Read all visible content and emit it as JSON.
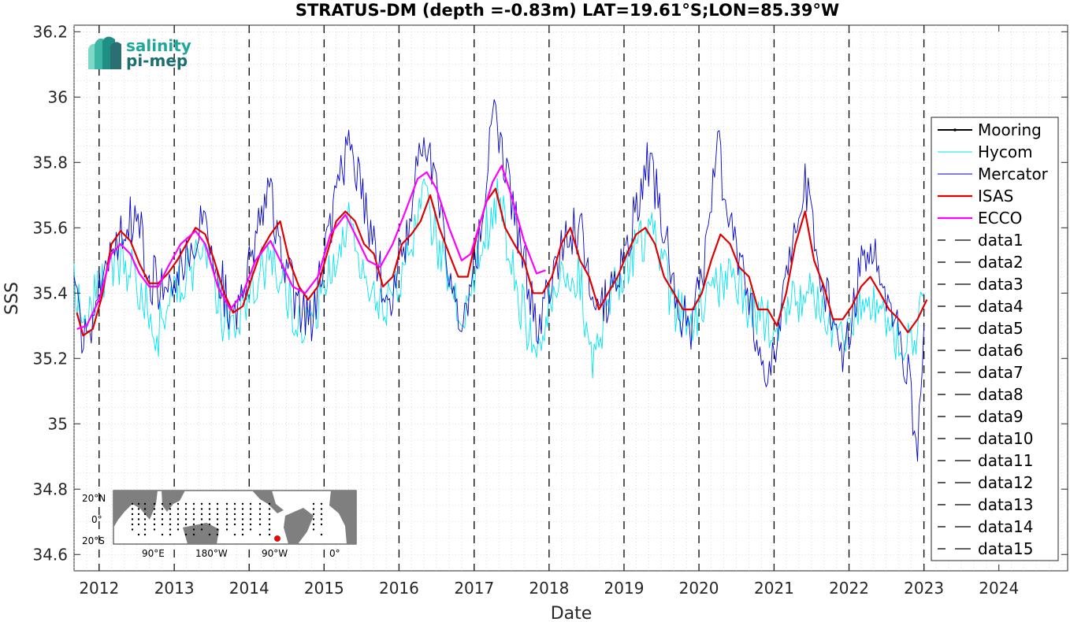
{
  "title": "STRATUS-DM (depth =-0.83m) LAT=19.61°S;LON=85.39°W",
  "logo": {
    "line1": "salinity",
    "line2": "pi-mep"
  },
  "inset_map": {
    "ylabels": [
      "20°N",
      "0°",
      "20°S"
    ],
    "xlabels": [
      "90°E",
      "180°W",
      "90°W",
      "0°"
    ],
    "marker_color": "#ff0000"
  },
  "chart_data": {
    "type": "line",
    "xlabel": "Date",
    "ylabel": "SSS",
    "xlim": [
      "2011-09-01",
      "2024-12-01"
    ],
    "ylim": [
      34.55,
      36.22
    ],
    "yticks": [
      34.6,
      34.8,
      35,
      35.2,
      35.4,
      35.6,
      35.8,
      36,
      36.2
    ],
    "ytick_labels": [
      "34.6",
      "34.8",
      "35",
      "35.2",
      "35.4",
      "35.6",
      "35.8",
      "36",
      "36.2"
    ],
    "xticks": [
      "2012-01-01",
      "2013-01-01",
      "2014-01-01",
      "2015-01-01",
      "2016-01-01",
      "2017-01-01",
      "2018-01-01",
      "2019-01-01",
      "2020-01-01",
      "2021-01-01",
      "2022-01-01",
      "2023-01-01",
      "2024-01-01"
    ],
    "xtick_labels": [
      "2012",
      "2013",
      "2014",
      "2015",
      "2016",
      "2017",
      "2018",
      "2019",
      "2020",
      "2021",
      "2022",
      "2023",
      "2024"
    ],
    "grid": true,
    "legend_position": "right",
    "vlines": [
      "2012-01-01",
      "2013-01-01",
      "2014-01-01",
      "2015-01-01",
      "2016-01-01",
      "2017-01-01",
      "2018-01-01",
      "2019-01-01",
      "2020-01-01",
      "2021-01-01",
      "2022-01-01",
      "2023-01-01"
    ],
    "series": [
      {
        "name": "Mooring",
        "color": "#000000",
        "style": "solid-dot",
        "points": []
      },
      {
        "name": "Hycom",
        "color": "#00e5ee",
        "style": "thin",
        "points": [
          [
            "2011-09-01",
            35.42
          ],
          [
            "2011-11-01",
            35.33
          ],
          [
            "2012-02-01",
            35.45
          ],
          [
            "2012-05-01",
            35.5
          ],
          [
            "2012-08-01",
            35.4
          ],
          [
            "2012-10-01",
            35.25
          ],
          [
            "2012-12-01",
            35.38
          ],
          [
            "2013-03-01",
            35.45
          ],
          [
            "2013-06-01",
            35.55
          ],
          [
            "2013-09-01",
            35.3
          ],
          [
            "2013-11-01",
            35.3
          ],
          [
            "2014-02-01",
            35.45
          ],
          [
            "2014-05-01",
            35.5
          ],
          [
            "2014-08-01",
            35.35
          ],
          [
            "2014-11-01",
            35.3
          ],
          [
            "2015-02-01",
            35.45
          ],
          [
            "2015-05-01",
            35.62
          ],
          [
            "2015-08-01",
            35.45
          ],
          [
            "2015-11-01",
            35.35
          ],
          [
            "2016-02-01",
            35.5
          ],
          [
            "2016-05-01",
            35.7
          ],
          [
            "2016-08-01",
            35.5
          ],
          [
            "2016-11-01",
            35.3
          ],
          [
            "2017-02-01",
            35.55
          ],
          [
            "2017-05-01",
            35.7
          ],
          [
            "2017-08-01",
            35.4
          ],
          [
            "2017-11-01",
            35.2
          ],
          [
            "2018-01-01",
            35.35
          ],
          [
            "2018-03-01",
            35.5
          ],
          [
            "2018-06-01",
            35.45
          ],
          [
            "2018-08-01",
            35.15
          ],
          [
            "2018-11-01",
            35.4
          ],
          [
            "2019-03-01",
            35.55
          ],
          [
            "2019-06-01",
            35.6
          ],
          [
            "2019-09-01",
            35.35
          ],
          [
            "2019-12-01",
            35.3
          ],
          [
            "2020-03-01",
            35.4
          ],
          [
            "2020-06-01",
            35.45
          ],
          [
            "2020-09-01",
            35.35
          ],
          [
            "2020-12-01",
            35.3
          ],
          [
            "2021-03-01",
            35.35
          ],
          [
            "2021-06-01",
            35.4
          ],
          [
            "2021-09-01",
            35.35
          ],
          [
            "2021-12-01",
            35.25
          ],
          [
            "2022-03-01",
            35.35
          ],
          [
            "2022-06-01",
            35.38
          ],
          [
            "2022-09-01",
            35.25
          ],
          [
            "2022-12-01",
            35.28
          ],
          [
            "2023-01-01",
            35.4
          ]
        ]
      },
      {
        "name": "Mercator",
        "color": "#0000c8",
        "style": "thin",
        "points": [
          [
            "2011-09-01",
            35.4
          ],
          [
            "2011-11-01",
            35.22
          ],
          [
            "2012-02-01",
            35.5
          ],
          [
            "2012-05-01",
            35.6
          ],
          [
            "2012-07-01",
            35.65
          ],
          [
            "2012-09-01",
            35.45
          ],
          [
            "2012-12-01",
            35.4
          ],
          [
            "2013-03-01",
            35.5
          ],
          [
            "2013-06-01",
            35.65
          ],
          [
            "2013-09-01",
            35.4
          ],
          [
            "2013-11-01",
            35.3
          ],
          [
            "2014-02-01",
            35.55
          ],
          [
            "2014-04-01",
            35.75
          ],
          [
            "2014-06-01",
            35.55
          ],
          [
            "2014-09-01",
            35.35
          ],
          [
            "2014-11-01",
            35.3
          ],
          [
            "2015-03-01",
            35.7
          ],
          [
            "2015-05-01",
            35.85
          ],
          [
            "2015-07-01",
            35.7
          ],
          [
            "2015-10-01",
            35.45
          ],
          [
            "2015-12-01",
            35.4
          ],
          [
            "2016-03-01",
            35.65
          ],
          [
            "2016-05-01",
            35.9
          ],
          [
            "2016-07-01",
            35.75
          ],
          [
            "2016-09-01",
            35.45
          ],
          [
            "2016-11-01",
            35.3
          ],
          [
            "2017-02-01",
            35.6
          ],
          [
            "2017-04-01",
            35.95
          ],
          [
            "2017-06-01",
            35.8
          ],
          [
            "2017-09-01",
            35.5
          ],
          [
            "2017-11-01",
            35.3
          ],
          [
            "2018-01-01",
            35.4
          ],
          [
            "2018-03-01",
            35.55
          ],
          [
            "2018-06-01",
            35.6
          ],
          [
            "2018-08-01",
            35.35
          ],
          [
            "2018-11-01",
            35.4
          ],
          [
            "2019-02-01",
            35.6
          ],
          [
            "2019-05-01",
            35.8
          ],
          [
            "2019-07-01",
            35.65
          ],
          [
            "2019-10-01",
            35.35
          ],
          [
            "2019-12-01",
            35.3
          ],
          [
            "2020-02-01",
            35.5
          ],
          [
            "2020-04-01",
            35.85
          ],
          [
            "2020-06-01",
            35.6
          ],
          [
            "2020-09-01",
            35.4
          ],
          [
            "2020-12-01",
            35.1
          ],
          [
            "2021-02-01",
            35.3
          ],
          [
            "2021-04-01",
            35.6
          ],
          [
            "2021-06-01",
            35.75
          ],
          [
            "2021-08-01",
            35.5
          ],
          [
            "2021-10-01",
            35.35
          ],
          [
            "2021-12-01",
            35.15
          ],
          [
            "2022-02-01",
            35.4
          ],
          [
            "2022-04-01",
            35.55
          ],
          [
            "2022-06-01",
            35.45
          ],
          [
            "2022-08-01",
            35.35
          ],
          [
            "2022-10-01",
            35.2
          ],
          [
            "2022-12-01",
            34.95
          ],
          [
            "2023-01-01",
            35.3
          ]
        ]
      },
      {
        "name": "ISAS",
        "color": "#e00000",
        "style": "thick",
        "points": [
          [
            "2011-09-15",
            35.34
          ],
          [
            "2011-10-15",
            35.27
          ],
          [
            "2011-12-01",
            35.29
          ],
          [
            "2012-01-15",
            35.39
          ],
          [
            "2012-03-01",
            35.55
          ],
          [
            "2012-04-15",
            35.59
          ],
          [
            "2012-06-01",
            35.56
          ],
          [
            "2012-07-15",
            35.49
          ],
          [
            "2012-09-01",
            35.43
          ],
          [
            "2012-10-15",
            35.43
          ],
          [
            "2012-12-01",
            35.46
          ],
          [
            "2013-01-15",
            35.5
          ],
          [
            "2013-03-01",
            35.55
          ],
          [
            "2013-04-15",
            35.6
          ],
          [
            "2013-06-01",
            35.58
          ],
          [
            "2013-07-15",
            35.5
          ],
          [
            "2013-09-01",
            35.4
          ],
          [
            "2013-10-15",
            35.34
          ],
          [
            "2013-12-01",
            35.36
          ],
          [
            "2014-01-15",
            35.45
          ],
          [
            "2014-03-01",
            35.53
          ],
          [
            "2014-04-15",
            35.58
          ],
          [
            "2014-06-01",
            35.62
          ],
          [
            "2014-07-15",
            35.5
          ],
          [
            "2014-09-01",
            35.42
          ],
          [
            "2014-10-15",
            35.38
          ],
          [
            "2014-12-01",
            35.42
          ],
          [
            "2015-01-15",
            35.52
          ],
          [
            "2015-03-01",
            35.62
          ],
          [
            "2015-04-15",
            35.65
          ],
          [
            "2015-06-01",
            35.62
          ],
          [
            "2015-07-15",
            35.55
          ],
          [
            "2015-09-01",
            35.52
          ],
          [
            "2015-10-15",
            35.42
          ],
          [
            "2015-12-01",
            35.45
          ],
          [
            "2016-01-15",
            35.55
          ],
          [
            "2016-03-01",
            35.58
          ],
          [
            "2016-04-15",
            35.62
          ],
          [
            "2016-06-01",
            35.7
          ],
          [
            "2016-07-15",
            35.6
          ],
          [
            "2016-09-01",
            35.52
          ],
          [
            "2016-10-15",
            35.45
          ],
          [
            "2016-12-01",
            35.45
          ],
          [
            "2017-01-15",
            35.58
          ],
          [
            "2017-03-01",
            35.68
          ],
          [
            "2017-04-15",
            35.72
          ],
          [
            "2017-06-01",
            35.6
          ],
          [
            "2017-07-15",
            35.55
          ],
          [
            "2017-09-01",
            35.5
          ],
          [
            "2017-10-15",
            35.4
          ],
          [
            "2017-12-01",
            35.4
          ],
          [
            "2018-01-15",
            35.45
          ],
          [
            "2018-03-01",
            35.55
          ],
          [
            "2018-04-15",
            35.6
          ],
          [
            "2018-06-01",
            35.5
          ],
          [
            "2018-07-15",
            35.45
          ],
          [
            "2018-09-01",
            35.35
          ],
          [
            "2018-10-15",
            35.4
          ],
          [
            "2018-12-01",
            35.45
          ],
          [
            "2019-01-15",
            35.52
          ],
          [
            "2019-03-01",
            35.58
          ],
          [
            "2019-04-15",
            35.6
          ],
          [
            "2019-06-01",
            35.55
          ],
          [
            "2019-07-15",
            35.45
          ],
          [
            "2019-09-01",
            35.4
          ],
          [
            "2019-10-15",
            35.35
          ],
          [
            "2019-12-01",
            35.35
          ],
          [
            "2020-01-15",
            35.4
          ],
          [
            "2020-03-01",
            35.5
          ],
          [
            "2020-04-15",
            35.58
          ],
          [
            "2020-06-01",
            35.55
          ],
          [
            "2020-07-15",
            35.48
          ],
          [
            "2020-09-01",
            35.45
          ],
          [
            "2020-10-15",
            35.35
          ],
          [
            "2020-12-01",
            35.35
          ],
          [
            "2021-01-15",
            35.3
          ],
          [
            "2021-03-01",
            35.4
          ],
          [
            "2021-04-15",
            35.55
          ],
          [
            "2021-06-01",
            35.65
          ],
          [
            "2021-07-15",
            35.5
          ],
          [
            "2021-09-01",
            35.42
          ],
          [
            "2021-10-15",
            35.32
          ],
          [
            "2021-12-01",
            35.32
          ],
          [
            "2022-01-15",
            35.36
          ],
          [
            "2022-03-01",
            35.42
          ],
          [
            "2022-04-15",
            35.45
          ],
          [
            "2022-06-01",
            35.4
          ],
          [
            "2022-07-15",
            35.35
          ],
          [
            "2022-09-01",
            35.32
          ],
          [
            "2022-10-15",
            35.28
          ],
          [
            "2022-12-01",
            35.32
          ],
          [
            "2023-01-15",
            35.38
          ]
        ]
      },
      {
        "name": "ECCO",
        "color": "#ff00ff",
        "style": "thick",
        "points": [
          [
            "2011-09-15",
            35.29
          ],
          [
            "2011-11-01",
            35.3
          ],
          [
            "2012-01-01",
            35.38
          ],
          [
            "2012-03-01",
            35.52
          ],
          [
            "2012-04-15",
            35.55
          ],
          [
            "2012-06-01",
            35.52
          ],
          [
            "2012-07-15",
            35.46
          ],
          [
            "2012-09-01",
            35.42
          ],
          [
            "2012-10-15",
            35.42
          ],
          [
            "2012-12-01",
            35.48
          ],
          [
            "2013-02-01",
            35.55
          ],
          [
            "2013-04-15",
            35.59
          ],
          [
            "2013-06-01",
            35.55
          ],
          [
            "2013-08-01",
            35.42
          ],
          [
            "2013-10-01",
            35.35
          ],
          [
            "2013-12-01",
            35.4
          ],
          [
            "2014-02-01",
            35.5
          ],
          [
            "2014-04-15",
            35.56
          ],
          [
            "2014-06-01",
            35.5
          ],
          [
            "2014-08-01",
            35.42
          ],
          [
            "2014-10-01",
            35.4
          ],
          [
            "2014-12-01",
            35.45
          ],
          [
            "2015-02-01",
            35.58
          ],
          [
            "2015-04-15",
            35.64
          ],
          [
            "2015-06-01",
            35.58
          ],
          [
            "2015-08-01",
            35.5
          ],
          [
            "2015-10-01",
            35.48
          ],
          [
            "2015-12-01",
            35.55
          ],
          [
            "2016-02-01",
            35.65
          ],
          [
            "2016-04-01",
            35.75
          ],
          [
            "2016-05-15",
            35.77
          ],
          [
            "2016-07-01",
            35.72
          ],
          [
            "2016-09-01",
            35.6
          ],
          [
            "2016-11-01",
            35.5
          ],
          [
            "2016-12-15",
            35.52
          ],
          [
            "2017-02-01",
            35.62
          ],
          [
            "2017-04-01",
            35.74
          ],
          [
            "2017-05-15",
            35.79
          ],
          [
            "2017-07-01",
            35.7
          ],
          [
            "2017-09-01",
            35.56
          ],
          [
            "2017-11-01",
            35.46
          ],
          [
            "2017-12-15",
            35.47
          ]
        ]
      }
    ],
    "legend_extra": [
      "data1",
      "data2",
      "data3",
      "data4",
      "data5",
      "data6",
      "data7",
      "data8",
      "data9",
      "data10",
      "data11",
      "data12",
      "data13",
      "data14",
      "data15"
    ]
  }
}
